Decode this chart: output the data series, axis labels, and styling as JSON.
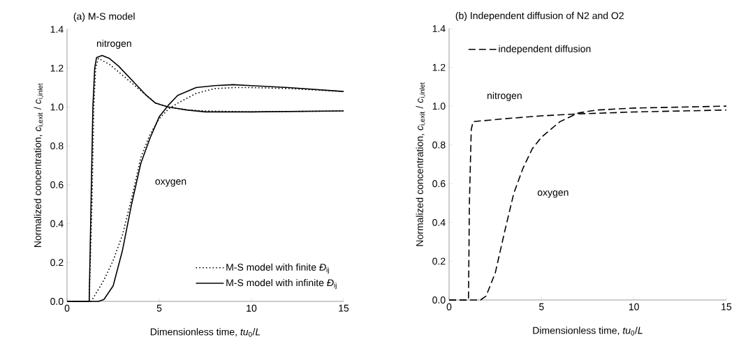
{
  "chart_data": [
    {
      "type": "line",
      "title": "(a) M-S model",
      "xlabel": "Dimensionless time, *tu*$_{0}$/*L*",
      "ylabel": "Normalized concentration, *c*$_{i,exit}$ / *c*$_{i,inlet}$",
      "xlim": [
        0,
        15
      ],
      "ylim": [
        0,
        1.4
      ],
      "xticks": [
        0,
        5,
        10,
        15
      ],
      "yticks": [
        {
          "value": 0,
          "label": "0.0"
        },
        {
          "value": 0.2,
          "label": "0.2"
        },
        {
          "value": 0.4,
          "label": "0.4"
        },
        {
          "value": 0.6,
          "label": "0.6"
        },
        {
          "value": 0.8,
          "label": "0.8"
        },
        {
          "value": 1.0,
          "label": "1.0"
        },
        {
          "value": 1.2,
          "label": "1.2"
        },
        {
          "value": 1.4,
          "label": "1.4"
        }
      ],
      "legend": "bottom right",
      "series": [
        {
          "name": "M-S model with finite *Đ*$_{ij}$",
          "color": "#000000",
          "line_style": "dotted",
          "x": [
            0,
            1.2,
            1.35,
            1.45,
            1.55,
            1.7,
            2.3,
            2.8,
            3.3,
            3.8,
            4.3,
            4.8,
            5.5,
            6.5,
            7.5,
            10,
            15
          ],
          "values": [
            0,
            0,
            0.5,
            1.0,
            1.2,
            1.25,
            1.22,
            1.18,
            1.14,
            1.1,
            1.06,
            1.02,
            1.0,
            0.985,
            0.98,
            0.975,
            0.98
          ]
        },
        {
          "name": "M-S model with infinite *Đ*$_{ij}$",
          "color": "#000000",
          "line_style": "solid",
          "x": [
            0,
            1.2,
            1.3,
            1.4,
            1.5,
            1.6,
            1.9,
            2.3,
            2.8,
            3.3,
            3.8,
            4.3,
            4.8,
            5.5,
            6.5,
            7.5,
            10,
            15
          ],
          "values": [
            0,
            0,
            0.5,
            1.0,
            1.2,
            1.255,
            1.265,
            1.25,
            1.21,
            1.16,
            1.11,
            1.06,
            1.02,
            1.0,
            0.985,
            0.975,
            0.975,
            0.98
          ]
        },
        {
          "color": "#000000",
          "line_style": "dotted",
          "x": [
            0,
            1.3,
            1.5,
            2,
            2.5,
            3,
            3.5,
            4,
            4.5,
            5,
            5.5,
            6,
            7,
            8,
            9,
            10,
            12,
            15
          ],
          "values": [
            0,
            0,
            0.03,
            0.11,
            0.21,
            0.34,
            0.53,
            0.74,
            0.86,
            0.94,
            0.99,
            1.02,
            1.07,
            1.095,
            1.1,
            1.1,
            1.095,
            1.08
          ]
        },
        {
          "color": "#000000",
          "line_style": "solid",
          "x": [
            0,
            1.7,
            2,
            2.5,
            3,
            3.5,
            4,
            4.5,
            5,
            5.5,
            6,
            7,
            8,
            9,
            10,
            12,
            15
          ],
          "values": [
            0,
            0,
            0.01,
            0.08,
            0.26,
            0.5,
            0.71,
            0.84,
            0.95,
            1.01,
            1.06,
            1.1,
            1.11,
            1.115,
            1.11,
            1.1,
            1.08
          ]
        }
      ],
      "annotations": [
        "nitrogen",
        "oxygen"
      ]
    },
    {
      "type": "line",
      "title": "(b) Independent diffusion of N2 and O2",
      "xlabel": "Dimensionless time, *tu*$_{0}$/*L*",
      "ylabel": "Normalized concentration, *c*$_{i,exit}$ / *c*$_{i,inlet}$",
      "xlim": [
        0,
        15
      ],
      "ylim": [
        0,
        1.4
      ],
      "xticks": [
        0,
        5,
        10,
        15
      ],
      "yticks": [
        {
          "value": 0,
          "label": "0.0"
        },
        {
          "value": 0.2,
          "label": "0.2"
        },
        {
          "value": 0.4,
          "label": "0.4"
        },
        {
          "value": 0.6,
          "label": "0.6"
        },
        {
          "value": 0.8,
          "label": "0.8"
        },
        {
          "value": 1.0,
          "label": "1.0"
        },
        {
          "value": 1.2,
          "label": "1.2"
        },
        {
          "value": 1.4,
          "label": "1.4"
        }
      ],
      "legend": "top left",
      "series": [
        {
          "name": "independent diffusion",
          "color": "#000000",
          "line_style": "dashed",
          "x": [
            0,
            1.05,
            1.1,
            1.2,
            1.3,
            3,
            5,
            7,
            10,
            15
          ],
          "values": [
            0,
            0,
            0.5,
            0.88,
            0.92,
            0.935,
            0.95,
            0.96,
            0.97,
            0.98
          ]
        },
        {
          "color": "#000000",
          "line_style": "dashed",
          "x": [
            0,
            1.7,
            2,
            2.5,
            3,
            3.5,
            4,
            4.5,
            5,
            6,
            7,
            8,
            10,
            15
          ],
          "values": [
            0,
            0,
            0.02,
            0.14,
            0.35,
            0.55,
            0.68,
            0.78,
            0.84,
            0.92,
            0.965,
            0.98,
            0.99,
            1.0
          ]
        }
      ],
      "annotations": [
        "nitrogen",
        "oxygen"
      ]
    }
  ]
}
